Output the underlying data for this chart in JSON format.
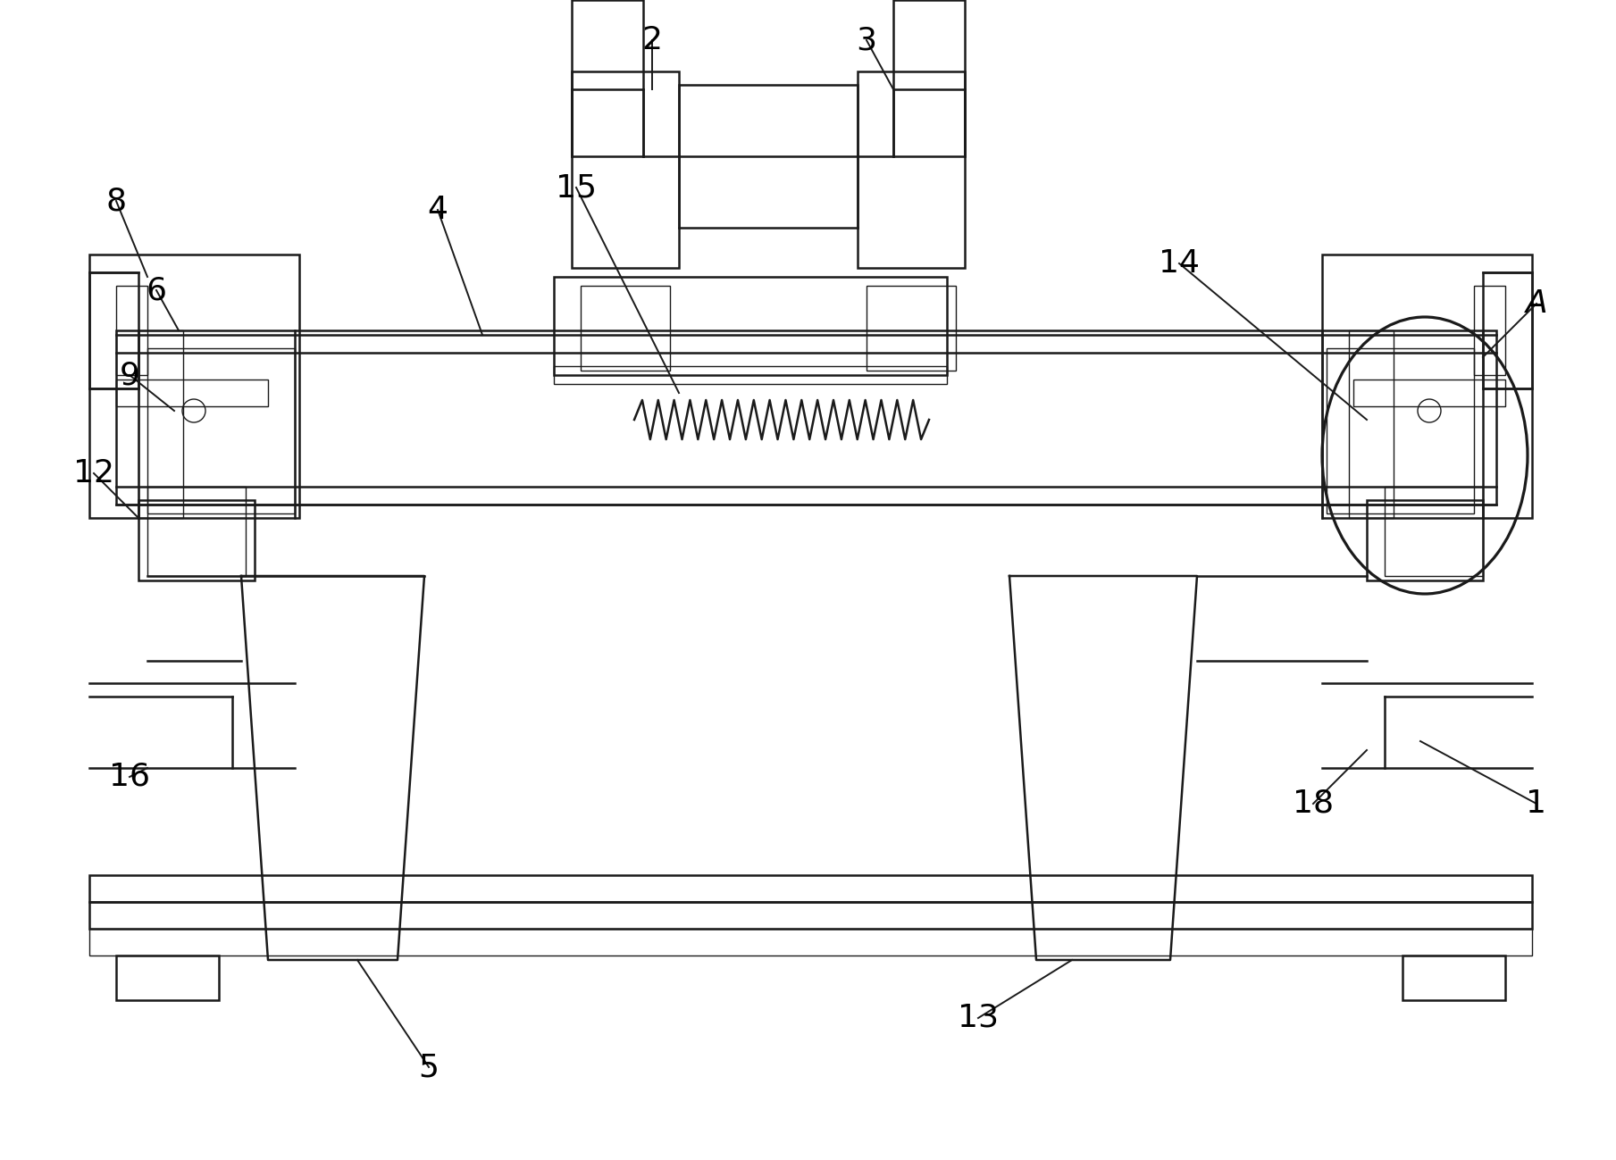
{
  "figure_width": 18.09,
  "figure_height": 12.99,
  "dpi": 100,
  "bg_color": "#ffffff",
  "line_color": "#1a1a1a",
  "lw": 1.8,
  "tlw": 1.0,
  "font_size": 26,
  "label_lw": 1.4,
  "canvas_xlim": [
    0,
    1809
  ],
  "canvas_ylim": [
    0,
    1299
  ]
}
